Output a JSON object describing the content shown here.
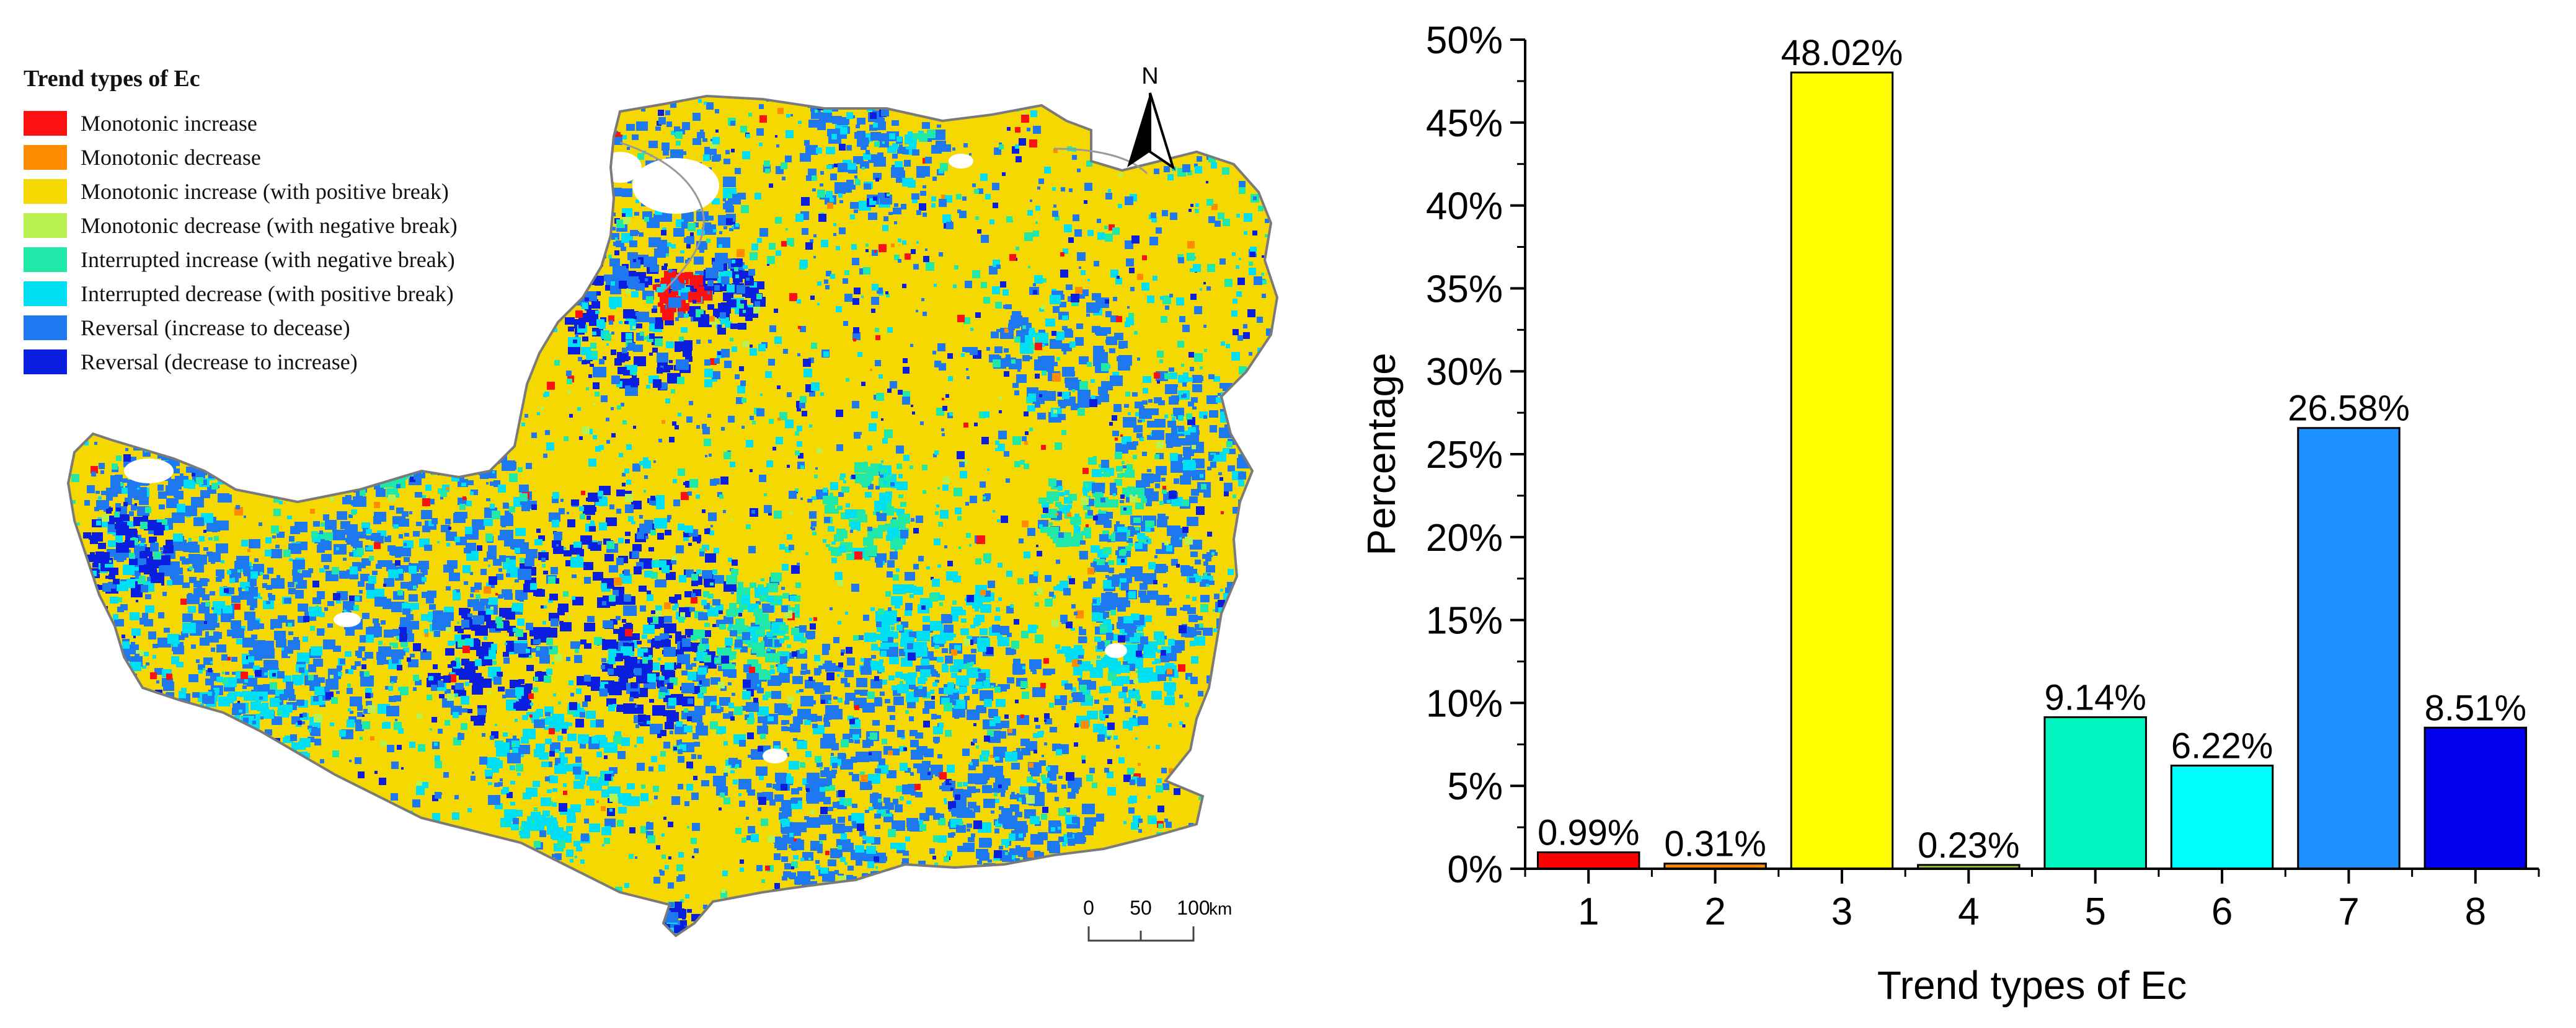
{
  "map": {
    "legend_title": "Trend types of Ec",
    "legend": [
      {
        "label": "Monotonic increase",
        "color": "#ff1010"
      },
      {
        "label": "Monotonic decrease",
        "color": "#ff8c00"
      },
      {
        "label": "Monotonic increase (with positive break)",
        "color": "#f5d800"
      },
      {
        "label": "Monotonic decrease (with negative break)",
        "color": "#b8f050"
      },
      {
        "label": "Interrupted increase (with negative break)",
        "color": "#20e8a8"
      },
      {
        "label": "Interrupted decrease (with positive break)",
        "color": "#00e0f5"
      },
      {
        "label": "Reversal (increase to decease)",
        "color": "#1e78f0"
      },
      {
        "label": "Reversal (decrease to increase)",
        "color": "#0a1ee0"
      }
    ],
    "north_label": "N",
    "scalebar": {
      "ticks": [
        "0",
        "50",
        "100"
      ],
      "unit": "km"
    }
  },
  "chart_data": {
    "type": "bar",
    "categories": [
      "1",
      "2",
      "3",
      "4",
      "5",
      "6",
      "7",
      "8"
    ],
    "values": [
      0.99,
      0.31,
      48.02,
      0.23,
      9.14,
      6.22,
      26.58,
      8.51
    ],
    "data_labels": [
      "0.99%",
      "0.31%",
      "48.02%",
      "0.23%",
      "9.14%",
      "6.22%",
      "26.58%",
      "8.51%"
    ],
    "colors": [
      "#ff0000",
      "#ff8c00",
      "#ffff00",
      "#9acd32",
      "#00f5c0",
      "#00ffff",
      "#1e90ff",
      "#0000ee"
    ],
    "xlabel": "Trend types of Ec",
    "ylabel": "Percentage",
    "ylim": [
      0,
      50
    ],
    "yticks": [
      0,
      5,
      10,
      15,
      20,
      25,
      30,
      35,
      40,
      45,
      50
    ],
    "ytick_labels": [
      "0%",
      "5%",
      "10%",
      "15%",
      "20%",
      "25%",
      "30%",
      "35%",
      "40%",
      "45%",
      "50%"
    ],
    "grid": false
  }
}
